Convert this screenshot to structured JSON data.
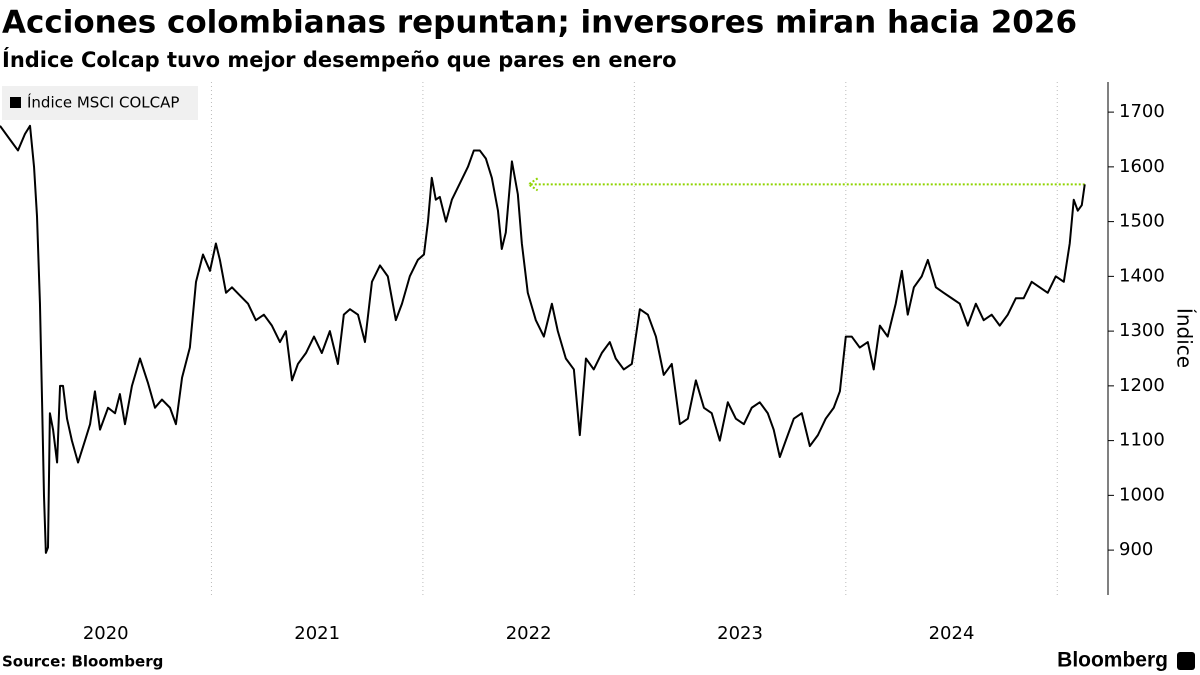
{
  "chart_data": {
    "type": "line",
    "title": "Acciones colombianas repuntan; inversores miran hacia 2026",
    "subtitle": "Índice Colcap tuvo mejor desempeño que pares en enero",
    "y_label": "Índice",
    "source": "Source: Bloomberg",
    "brand": "Bloomberg",
    "legend_position": "top-left",
    "series": [
      {
        "name": "Índice MSCI COLCAP",
        "color": "#000000",
        "x": [
          2020.0,
          2020.047,
          2020.085,
          2020.118,
          2020.142,
          2020.161,
          2020.175,
          2020.189,
          2020.199,
          2020.208,
          2020.217,
          2020.227,
          2020.236,
          2020.251,
          2020.27,
          2020.284,
          2020.298,
          2020.317,
          2020.34,
          2020.369,
          2020.402,
          2020.426,
          2020.449,
          2020.473,
          2020.511,
          2020.544,
          2020.567,
          2020.591,
          2020.624,
          2020.662,
          2020.7,
          2020.733,
          2020.766,
          2020.804,
          2020.832,
          2020.861,
          2020.898,
          2020.927,
          2020.96,
          2020.993,
          2021.021,
          2021.04,
          2021.069,
          2021.097,
          2021.135,
          2021.173,
          2021.21,
          2021.248,
          2021.286,
          2021.324,
          2021.352,
          2021.381,
          2021.409,
          2021.447,
          2021.485,
          2021.522,
          2021.56,
          2021.598,
          2021.626,
          2021.655,
          2021.693,
          2021.726,
          2021.759,
          2021.797,
          2021.834,
          2021.872,
          2021.901,
          2021.938,
          2021.976,
          2022.005,
          2022.024,
          2022.042,
          2022.061,
          2022.08,
          2022.109,
          2022.137,
          2022.175,
          2022.213,
          2022.241,
          2022.269,
          2022.298,
          2022.326,
          2022.355,
          2022.373,
          2022.392,
          2022.421,
          2022.449,
          2022.468,
          2022.496,
          2022.534,
          2022.572,
          2022.61,
          2022.638,
          2022.676,
          2022.714,
          2022.742,
          2022.771,
          2022.808,
          2022.846,
          2022.884,
          2022.912,
          2022.95,
          2022.988,
          2023.026,
          2023.064,
          2023.102,
          2023.139,
          2023.177,
          2023.215,
          2023.253,
          2023.291,
          2023.329,
          2023.366,
          2023.404,
          2023.442,
          2023.48,
          2023.518,
          2023.555,
          2023.593,
          2023.631,
          2023.659,
          2023.688,
          2023.716,
          2023.754,
          2023.792,
          2023.83,
          2023.868,
          2023.905,
          2023.943,
          2023.972,
          2024.0,
          2024.028,
          2024.066,
          2024.104,
          2024.132,
          2024.161,
          2024.198,
          2024.236,
          2024.265,
          2024.293,
          2024.322,
          2024.359,
          2024.388,
          2024.426,
          2024.463,
          2024.501,
          2024.539,
          2024.577,
          2024.615,
          2024.652,
          2024.69,
          2024.728,
          2024.766,
          2024.804,
          2024.841,
          2024.879,
          2024.917,
          2024.955,
          2024.993,
          2025.031,
          2025.059,
          2025.078,
          2025.097,
          2025.116,
          2025.13
        ],
        "values": [
          1675,
          1650,
          1630,
          1660,
          1675,
          1600,
          1510,
          1350,
          1170,
          1000,
          895,
          905,
          1150,
          1120,
          1060,
          1200,
          1200,
          1140,
          1100,
          1060,
          1100,
          1130,
          1190,
          1120,
          1160,
          1150,
          1185,
          1130,
          1200,
          1250,
          1205,
          1160,
          1175,
          1160,
          1130,
          1215,
          1270,
          1390,
          1440,
          1410,
          1460,
          1430,
          1370,
          1380,
          1365,
          1350,
          1320,
          1330,
          1310,
          1280,
          1300,
          1210,
          1240,
          1260,
          1290,
          1260,
          1300,
          1240,
          1330,
          1340,
          1330,
          1280,
          1390,
          1420,
          1400,
          1320,
          1350,
          1400,
          1430,
          1440,
          1500,
          1580,
          1540,
          1545,
          1500,
          1540,
          1570,
          1600,
          1630,
          1630,
          1615,
          1580,
          1520,
          1450,
          1480,
          1610,
          1550,
          1460,
          1370,
          1320,
          1290,
          1350,
          1300,
          1250,
          1230,
          1110,
          1250,
          1230,
          1260,
          1280,
          1250,
          1230,
          1240,
          1340,
          1330,
          1290,
          1220,
          1240,
          1130,
          1140,
          1210,
          1160,
          1150,
          1100,
          1170,
          1140,
          1130,
          1160,
          1170,
          1150,
          1120,
          1070,
          1100,
          1140,
          1150,
          1090,
          1110,
          1140,
          1160,
          1190,
          1290,
          1290,
          1270,
          1280,
          1230,
          1310,
          1290,
          1350,
          1410,
          1330,
          1380,
          1400,
          1430,
          1380,
          1370,
          1360,
          1350,
          1310,
          1350,
          1320,
          1330,
          1310,
          1330,
          1360,
          1360,
          1390,
          1380,
          1370,
          1400,
          1390,
          1460,
          1540,
          1520,
          1530,
          1568
        ]
      }
    ],
    "annotation": {
      "x_from": 2025.13,
      "x_to": 2022.5,
      "y": 1568,
      "color": "#8fd400"
    },
    "xlim": [
      2020,
      2025.24
    ],
    "xticks": [
      {
        "value": 2020.5,
        "label": "2020"
      },
      {
        "value": 2021.5,
        "label": "2021"
      },
      {
        "value": 2022.5,
        "label": "2022"
      },
      {
        "value": 2023.5,
        "label": "2023"
      },
      {
        "value": 2024.5,
        "label": "2024"
      }
    ],
    "xgrid": [
      2021,
      2022,
      2023,
      2024,
      2025
    ],
    "ylim": [
      818,
      1755
    ],
    "yticks": [
      900,
      1000,
      1100,
      1200,
      1300,
      1400,
      1500,
      1600,
      1700
    ]
  }
}
